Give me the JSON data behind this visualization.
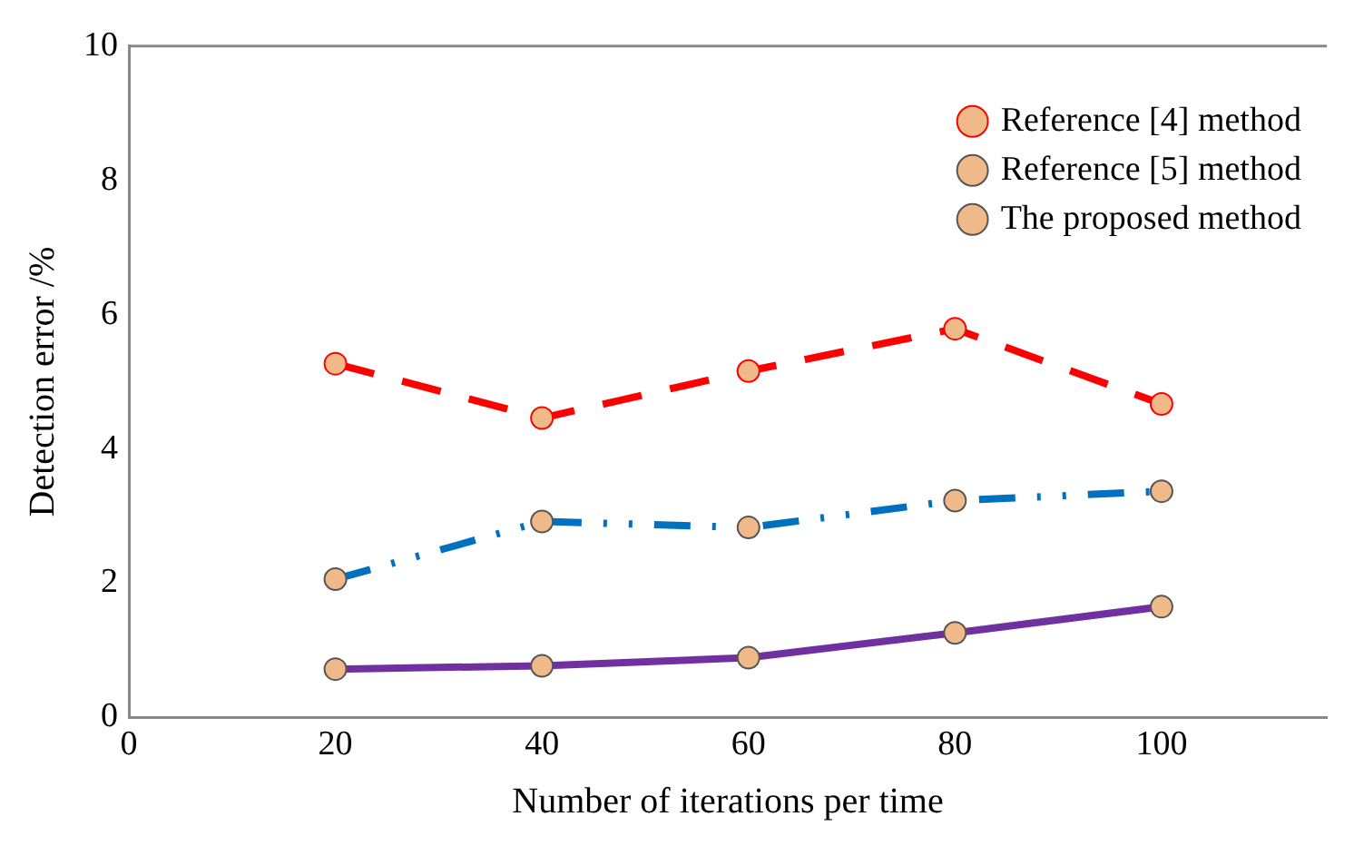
{
  "chart_data": {
    "type": "line",
    "xlabel": "Number of iterations per time",
    "ylabel": "Detection error /%",
    "x": [
      20,
      40,
      60,
      80,
      100
    ],
    "series": [
      {
        "name": "Reference [4] method",
        "color": "#ff0000",
        "line_style": "dashed",
        "values": [
          5.27,
          4.46,
          5.16,
          5.79,
          4.67
        ]
      },
      {
        "name": "Reference [5] method",
        "color": "#0070c0",
        "line_style": "dotted",
        "values": [
          2.06,
          2.92,
          2.83,
          3.23,
          3.37
        ]
      },
      {
        "name": "The proposed method",
        "color": "#7030a0",
        "line_style": "solid",
        "values": [
          0.72,
          0.77,
          0.89,
          1.26,
          1.65
        ]
      }
    ],
    "xlim": [
      0,
      116
    ],
    "xticks": [
      0,
      20,
      40,
      60,
      80,
      100
    ],
    "ylim": [
      0,
      10
    ],
    "yticks": [
      0,
      2,
      4,
      6,
      8,
      10
    ],
    "grid": false,
    "legend": "top right",
    "marker": "circle"
  }
}
